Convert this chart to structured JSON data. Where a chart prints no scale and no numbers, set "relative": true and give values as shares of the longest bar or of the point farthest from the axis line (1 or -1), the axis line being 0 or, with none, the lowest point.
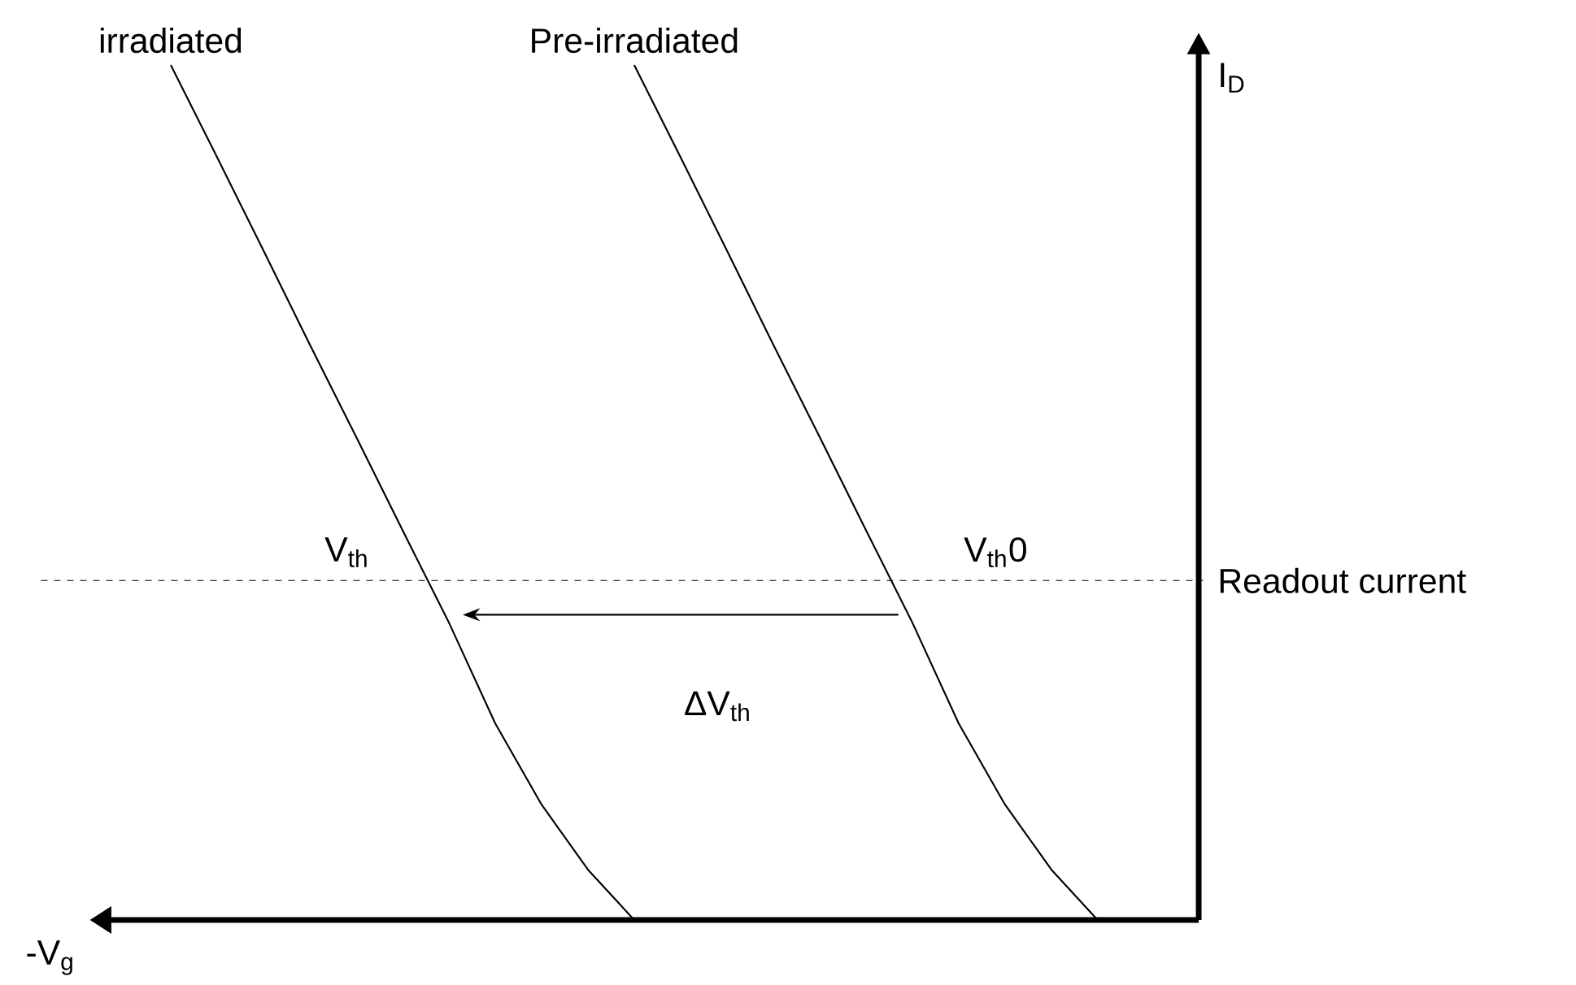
{
  "chart_data": {
    "type": "line",
    "relative": true,
    "xlabel": "-V$_{g}$",
    "ylabel": "I$_{D}$",
    "categories": [
      null,
      null,
      null,
      null,
      null,
      null,
      null,
      null,
      null,
      null,
      null,
      null,
      null,
      null,
      null,
      null,
      null,
      null,
      null,
      null,
      null,
      null,
      null
    ],
    "series": [
      {
        "name": "irradiated",
        "color": "#000000",
        "values": [
          1.0,
          0.892,
          0.783,
          0.673,
          0.565,
          0.456,
          0.348,
          0.23,
          0.135,
          0.059,
          0.0,
          null,
          null,
          null,
          null,
          null,
          null,
          null,
          null,
          null,
          null,
          null,
          null
        ]
      },
      {
        "name": "Pre-irradiated",
        "color": "#000000",
        "values": [
          null,
          null,
          null,
          null,
          null,
          null,
          null,
          null,
          null,
          null,
          1.0,
          0.892,
          0.783,
          0.673,
          0.565,
          0.456,
          0.348,
          0.23,
          0.135,
          0.059,
          0.0,
          null,
          null
        ]
      }
    ],
    "ref_lines": [
      {
        "axis": "y",
        "value": 0.397,
        "label": "Readout current",
        "line_style": "dashed",
        "color": "#000000"
      }
    ],
    "annotations": [
      "V$_{th}$",
      "V$_{th}$0",
      "ΔV$_{th}$"
    ]
  }
}
